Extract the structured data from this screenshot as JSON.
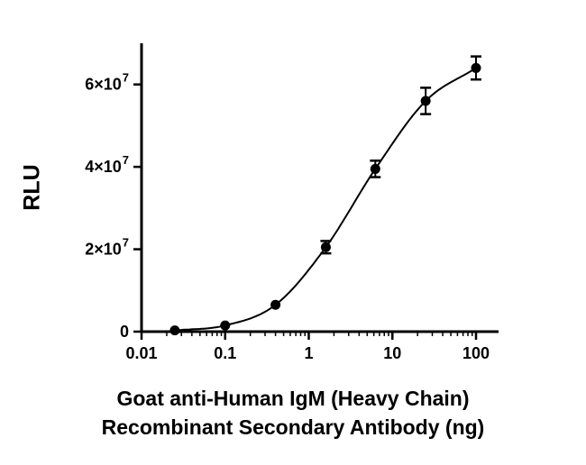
{
  "figure": {
    "background": "#ffffff"
  },
  "chart_data": {
    "type": "scatter",
    "curve": "smooth-sigmoid-fit",
    "title": "",
    "xlabel_line1": "Goat anti-Human IgM (Heavy Chain)",
    "xlabel_line2": "Recombinant Secondary Antibody (ng)",
    "ylabel": "RLU",
    "x_scale": "log10",
    "grid": false,
    "legend": null,
    "xlim": [
      0.01,
      186
    ],
    "ylim": [
      0,
      70000000
    ],
    "x": [
      0.025,
      0.1,
      0.4,
      1.6,
      6.25,
      25,
      100
    ],
    "y": [
      300000,
      1500000,
      6500000,
      20500000,
      39500000,
      56000000,
      64000000
    ],
    "y_err": [
      100000,
      300000,
      400000,
      1500000,
      2000000,
      3200000,
      2800000
    ],
    "x_ticks": [
      {
        "v": 0.01,
        "label": "0.01"
      },
      {
        "v": 0.1,
        "label": "0.1"
      },
      {
        "v": 1,
        "label": "1"
      },
      {
        "v": 10,
        "label": "10"
      },
      {
        "v": 100,
        "label": "100"
      }
    ],
    "y_ticks": [
      {
        "v": 0,
        "base": "0",
        "exp": ""
      },
      {
        "v": 20000000,
        "base": "2×10",
        "exp": "7"
      },
      {
        "v": 40000000,
        "base": "4×10",
        "exp": "7"
      },
      {
        "v": 60000000,
        "base": "6×10",
        "exp": "7"
      }
    ],
    "marker_color": "#000000",
    "line_color": "#000000",
    "axis_color": "#000000"
  }
}
